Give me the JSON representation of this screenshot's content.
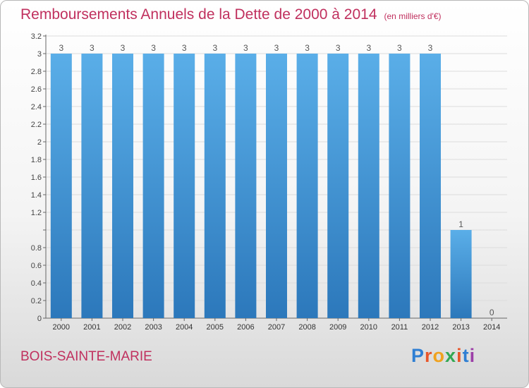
{
  "header": {
    "title": "Remboursements Annuels de la Dette de 2000 à 2014",
    "unit": "(en milliers d'€)"
  },
  "footer": {
    "commune": "BOIS-SAINTE-MARIE",
    "logo": {
      "letters": [
        "P",
        "r",
        "o",
        "x",
        "i",
        "t",
        "i"
      ],
      "colors": [
        "#2f7fd3",
        "#e8562a",
        "#f0a21e",
        "#33a853",
        "#e8562a",
        "#2f7fd3",
        "#9c3fa8"
      ]
    }
  },
  "colors": {
    "bar_light": "#5aaee8",
    "bar_dark": "#2c78bb",
    "title": "#c0305e",
    "grid": "#dcdcdc",
    "axis": "#666666"
  },
  "chart_data": {
    "type": "bar",
    "title": "Remboursements Annuels de la Dette de 2000 à 2014",
    "categories": [
      "2000",
      "2001",
      "2002",
      "2003",
      "2004",
      "2005",
      "2006",
      "2007",
      "2008",
      "2009",
      "2010",
      "2011",
      "2012",
      "2013",
      "2014"
    ],
    "values": [
      3,
      3,
      3,
      3,
      3,
      3,
      3,
      3,
      3,
      3,
      3,
      3,
      3,
      1,
      0
    ],
    "data_labels": [
      "3",
      "3",
      "3",
      "3",
      "3",
      "3",
      "3",
      "3",
      "3",
      "3",
      "3",
      "3",
      "3",
      "1",
      "0"
    ],
    "ylim": [
      0,
      3.2
    ],
    "yticks": [
      0,
      0.2,
      0.4,
      0.6,
      0.8,
      1,
      1.2,
      1.4,
      1.6,
      1.8,
      2,
      2.2,
      2.4,
      2.6,
      2.8,
      3,
      3.2
    ],
    "ytick_labels": [
      "0",
      "0.2",
      "0.4",
      "0.6",
      "0.8",
      "",
      "1.2",
      "1.4",
      "1.6",
      "1.8",
      "2",
      "2.2",
      "2.4",
      "2.6",
      "2.8",
      "3",
      "3.2"
    ],
    "grid": true,
    "legend": "none"
  }
}
